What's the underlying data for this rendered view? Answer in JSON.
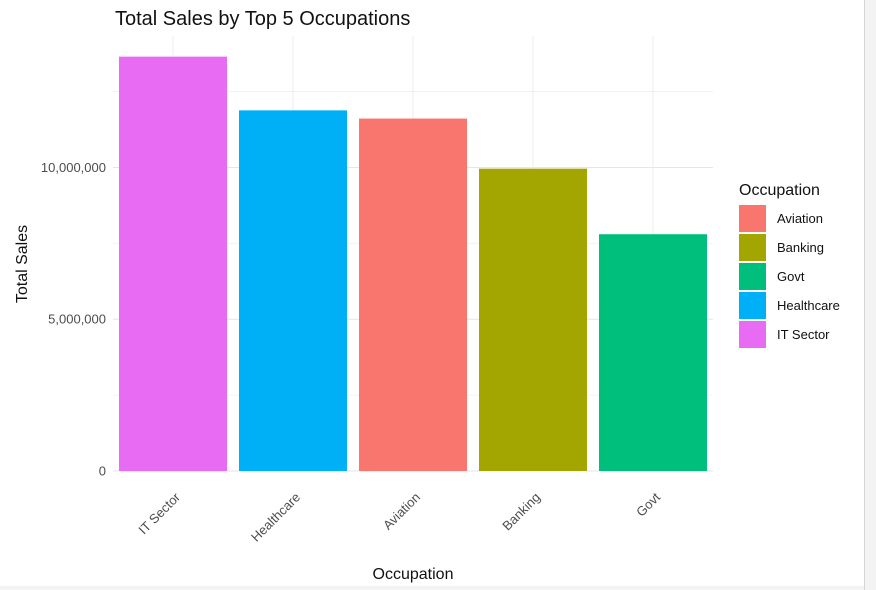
{
  "chart_data": {
    "type": "bar",
    "title": "Total Sales by Top 5 Occupations",
    "xlabel": "Occupation",
    "ylabel": "Total Sales",
    "categories": [
      "IT Sector",
      "Healthcare",
      "Aviation",
      "Banking",
      "Govt"
    ],
    "values": [
      13650000,
      11880000,
      11610000,
      9960000,
      7800000
    ],
    "colors": [
      "#E76BF3",
      "#00B0F6",
      "#F8766D",
      "#A3A500",
      "#00BF7D"
    ],
    "yticks": [
      0,
      5000000,
      10000000
    ],
    "ytick_labels": [
      "0",
      "5,000,000",
      "10,000,000"
    ],
    "ylim": [
      0,
      14330000
    ],
    "grid": true,
    "legend": {
      "title": "Occupation",
      "placement": "right",
      "items": [
        {
          "label": "Aviation",
          "color": "#F8766D"
        },
        {
          "label": "Banking",
          "color": "#A3A500"
        },
        {
          "label": "Govt",
          "color": "#00BF7D"
        },
        {
          "label": "Healthcare",
          "color": "#00B0F6"
        },
        {
          "label": "IT Sector",
          "color": "#E76BF3"
        }
      ]
    }
  }
}
